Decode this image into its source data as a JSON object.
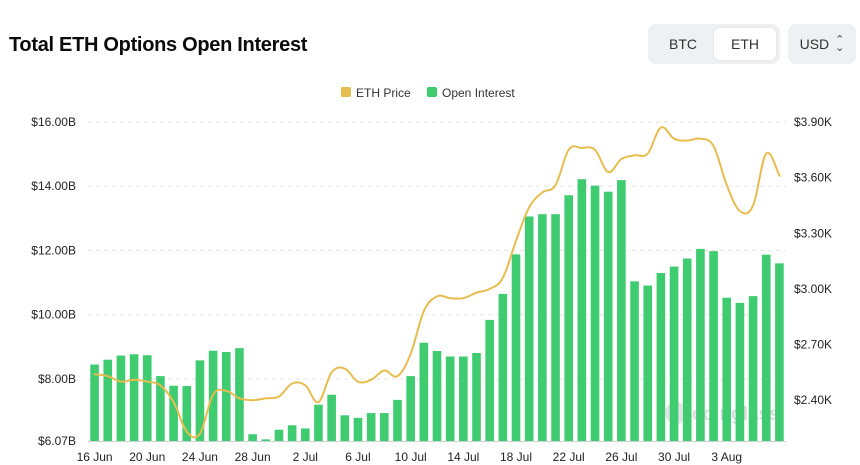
{
  "header": {
    "title": "Total ETH Options Open Interest",
    "toggle": [
      {
        "label": "BTC",
        "active": false
      },
      {
        "label": "ETH",
        "active": true
      }
    ],
    "currency": "USD"
  },
  "colors": {
    "bar": "#3fcb70",
    "line": "#e8bd4f",
    "grid": "#e4e6ea",
    "watermark": "#c9ccd1"
  },
  "watermark": "coinglass",
  "chart_data": {
    "type": "bar",
    "legend": [
      {
        "name": "ETH Price",
        "color": "#e8bd4f"
      },
      {
        "name": "Open Interest",
        "color": "#3fcb70"
      }
    ],
    "x_tick_labels": [
      "16 Jun",
      "20 Jun",
      "24 Jun",
      "28 Jun",
      "2 Jul",
      "6 Jul",
      "10 Jul",
      "14 Jul",
      "18 Jul",
      "22 Jul",
      "26 Jul",
      "30 Jul",
      "3 Aug"
    ],
    "y_left": {
      "label": "Open Interest",
      "min": 6.07,
      "max": 16.0,
      "ticks": [
        "$16.00B",
        "$14.00B",
        "$12.00B",
        "$10.00B",
        "$8.00B",
        "$6.07B"
      ],
      "tick_values": [
        16.0,
        14.0,
        12.0,
        10.0,
        8.0,
        6.07
      ]
    },
    "y_right": {
      "label": "ETH Price",
      "min": 2180,
      "max": 3900,
      "ticks": [
        "$3.90K",
        "$3.60K",
        "$3.30K",
        "$3.00K",
        "$2.70K",
        "$2.40K"
      ],
      "tick_values": [
        3900,
        3600,
        3300,
        3000,
        2700,
        2400
      ]
    },
    "series": [
      {
        "name": "Open Interest",
        "unit": "B USD",
        "values": [
          8.45,
          8.6,
          8.73,
          8.77,
          8.74,
          8.09,
          7.79,
          7.78,
          8.58,
          8.88,
          8.84,
          8.96,
          6.28,
          6.12,
          6.42,
          6.56,
          6.46,
          7.2,
          7.51,
          6.87,
          6.79,
          6.94,
          6.94,
          7.35,
          8.09,
          9.13,
          8.87,
          8.7,
          8.7,
          8.81,
          9.84,
          10.65,
          11.88,
          13.06,
          13.13,
          13.13,
          13.72,
          14.22,
          14.02,
          13.83,
          14.19,
          11.04,
          10.91,
          11.3,
          11.5,
          11.75,
          12.05,
          11.98,
          10.53,
          10.37,
          10.58,
          11.87,
          11.6
        ]
      },
      {
        "name": "ETH Price",
        "unit": "USD",
        "values": [
          2540,
          2530,
          2500,
          2510,
          2500,
          2480,
          2390,
          2230,
          2220,
          2430,
          2450,
          2410,
          2400,
          2410,
          2420,
          2490,
          2480,
          2390,
          2550,
          2570,
          2500,
          2510,
          2560,
          2530,
          2650,
          2880,
          2960,
          2950,
          2950,
          2980,
          3000,
          3060,
          3260,
          3440,
          3520,
          3560,
          3750,
          3760,
          3750,
          3630,
          3700,
          3720,
          3730,
          3870,
          3810,
          3800,
          3810,
          3770,
          3560,
          3420,
          3450,
          3730,
          3610
        ]
      }
    ]
  }
}
